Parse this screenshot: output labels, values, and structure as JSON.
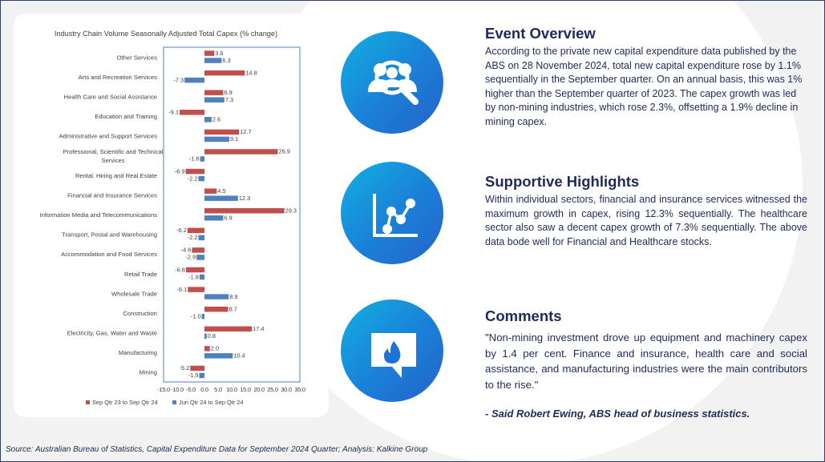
{
  "chart_data": {
    "type": "bar",
    "orientation": "horizontal",
    "title": "Industry Chain Volume Seasonally Adjusted Total Capex (% change)",
    "categories": [
      "Other Services",
      "Arts and Recreation Services",
      "Health Care and Social Assistance",
      "Education and Training",
      "Administrative and Support Services",
      "Professional, Scientific and Technical Services",
      "Rental, Hiring and Real Estate",
      "Financial and Insurance Services",
      "Information Media and Telecommunications",
      "Transport, Postal and Warehousing",
      "Accommodation and Food Services",
      "Retail Trade",
      "Wholesale Trade",
      "Construction",
      "Electricity, Gas, Water and Waste",
      "Manufacturing",
      "Mining"
    ],
    "series": [
      {
        "name": "Sep Qtr 23 to Sep Qtr 24",
        "color": "#c0504d",
        "values": [
          3.6,
          14.8,
          6.9,
          -9.1,
          12.7,
          26.9,
          -6.9,
          4.5,
          29.3,
          -6.2,
          -4.6,
          -6.8,
          -6.1,
          8.7,
          17.4,
          2.0,
          -5.2
        ],
        "labels": [
          "3.6",
          "14.8",
          "6.9",
          "-9.1",
          "12.7",
          "26.9",
          "-6.9",
          "4.5",
          "29.3",
          "-6.2",
          "-4.6",
          "-6.8",
          "-6.1",
          "8.7",
          "17.4",
          "2.0",
          "-5.2"
        ]
      },
      {
        "name": "Jun Qtr 24 to Sep Qtr 24",
        "color": "#4f81bd",
        "values": [
          6.3,
          -7.3,
          7.3,
          2.6,
          9.1,
          -1.6,
          -2.2,
          12.3,
          6.9,
          -2.2,
          -2.9,
          -1.8,
          8.9,
          -1.0,
          0.8,
          10.4,
          -1.9
        ],
        "labels": [
          "6.3",
          "-7.3",
          "7.3",
          "2.6",
          "9.1",
          "-1.6",
          "-2.2",
          "12.3",
          "6.9",
          "-2.2",
          "-2.9",
          "-1.8",
          "8.9",
          "-1.0",
          "0.8",
          "10.4",
          "-1.9"
        ]
      }
    ],
    "xlim": [
      -15,
      35
    ],
    "xticks": [
      -15,
      -10,
      -5,
      0,
      5,
      10,
      15,
      20,
      25,
      30,
      35
    ],
    "xtick_labels": [
      "-15.0",
      "-10.0",
      "-5.0",
      "0.0",
      "5.0",
      "10.0",
      "15.0",
      "20.0",
      "25.0",
      "30.0",
      "35.0"
    ],
    "grid": false,
    "legend_placement": "bottom"
  },
  "source": "Source: Australian Bureau of Statistics, Capital Expenditure Data for September 2024 Quarter; Analysis: Kalkine Group",
  "sections": {
    "overview": {
      "title": "Event Overview",
      "body": "According to the private new capital expenditure data published by the ABS on 28 November 2024, total new capital expenditure rose by 1.1% sequentially in the September quarter. On an annual basis, this was 1% higher than the September quarter of 2023. The capex growth was led by non-mining industries, which rose 2.3%, offsetting a 1.9% decline in mining capex.",
      "icon": "people-search-icon"
    },
    "highlights": {
      "title": "Supportive Highlights",
      "body": "Within individual sectors, financial and insurance services witnessed the maximum growth in capex, rising 12.3% sequentially. The healthcare sector also saw a decent capex growth of 7.3% sequentially. The above data bode well for Financial and Healthcare stocks.",
      "icon": "line-chart-icon"
    },
    "comments": {
      "title": "Comments",
      "body": "\"Non-mining investment drove up equipment and machinery capex by 1.4 per cent. Finance and insurance, health care and social assistance, and manufacturing industries were the main contributors to the rise.\"",
      "attribution": "- Said Robert Ewing, ABS head of business statistics.",
      "icon": "chat-flame-icon"
    }
  },
  "colors": {
    "title": "#1f2a5a",
    "icon_gradient_start": "#12b0e0",
    "icon_gradient_end": "#2563c9"
  }
}
